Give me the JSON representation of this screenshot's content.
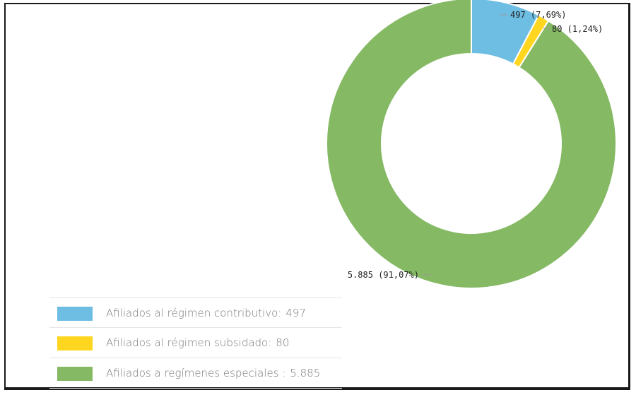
{
  "chart_data": {
    "type": "pie",
    "donut": true,
    "slices": [
      {
        "label": "Afiliados al régimen contributivo:",
        "value": 497,
        "value_label": "497",
        "data_label": "497 (7,69%)",
        "percent": 7.69,
        "color": "#6ebde3"
      },
      {
        "label": "Afiliados al régimen subsidado:",
        "value": 80,
        "value_label": "80",
        "data_label": "80 (1,24%)",
        "percent": 1.24,
        "color": "#ffd61f"
      },
      {
        "label": "Afiliados a regímenes especiales :",
        "value": 5885,
        "value_label": "5.885",
        "data_label": "5.885 (91,07%)",
        "percent": 91.07,
        "color": "#85b964"
      }
    ],
    "legend_position": "bottom-left"
  }
}
